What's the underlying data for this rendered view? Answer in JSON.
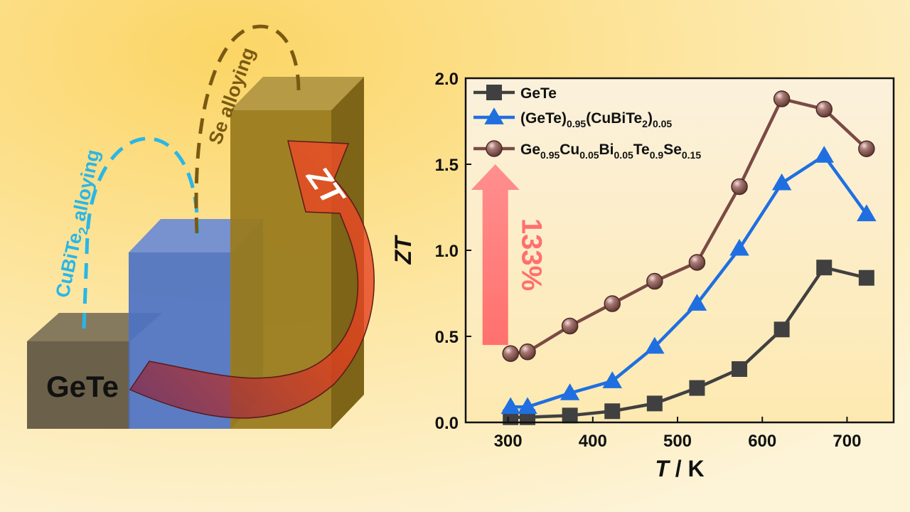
{
  "illustration": {
    "bar_label": "GeTe",
    "step1_label_a": "CuBiTe",
    "step1_label_sub": "2",
    "step1_label_b": " alloying",
    "step2_label": "Se alloying",
    "arrow_label": "ZT",
    "colors": {
      "bar1_front": "#6b6049",
      "bar1_top": "#857a5e",
      "bar2_front": "#4d72c4",
      "bar2_top": "#7891cf",
      "bar2_side": "#3e5ea6",
      "bar3_front": "#9a7b1f",
      "bar3_top": "#b69a46",
      "bar3_side": "#7d6417",
      "arrow_outer": "#e0401e",
      "arrow_inner": "#7a2c52",
      "label1": "#29b6e8",
      "label2": "#7a5a12"
    }
  },
  "chart_data": {
    "type": "line",
    "xlabel_italic": "T",
    "xlabel_rest": " / K",
    "ylabel": "ZT",
    "xlim": [
      250,
      755
    ],
    "ylim": [
      0,
      2.0
    ],
    "xticks": [
      300,
      400,
      500,
      600,
      700
    ],
    "yticks": [
      0.0,
      0.5,
      1.0,
      1.5,
      2.0
    ],
    "ytick_labels": [
      "0.0",
      "0.5",
      "1.0",
      "1.5",
      "2.0"
    ],
    "legend_position": "top-left",
    "annotation": {
      "text": "133%",
      "arrow_from": 0.45,
      "arrow_to": 1.5,
      "x": 285,
      "color": "#ff6f6f"
    },
    "series": [
      {
        "legend": [
          {
            "t": "GeTe"
          }
        ],
        "marker": "square",
        "color": "#404040",
        "x": [
          303,
          323,
          373,
          423,
          473,
          523,
          573,
          623,
          673,
          723
        ],
        "y": [
          0.03,
          0.03,
          0.04,
          0.065,
          0.11,
          0.2,
          0.31,
          0.54,
          0.9,
          0.84
        ]
      },
      {
        "legend": [
          {
            "t": "(GeTe)"
          },
          {
            "t": "0.95",
            "sub": true
          },
          {
            "t": "(CuBiTe"
          },
          {
            "t": "2",
            "sub": true
          },
          {
            "t": ")"
          },
          {
            "t": "0.05",
            "sub": true
          }
        ],
        "marker": "triangle",
        "color": "#1f6fe0",
        "x": [
          303,
          323,
          373,
          423,
          473,
          523,
          573,
          623,
          673,
          723
        ],
        "y": [
          0.09,
          0.09,
          0.17,
          0.24,
          0.44,
          0.69,
          1.01,
          1.39,
          1.55,
          1.21
        ]
      },
      {
        "legend": [
          {
            "t": "Ge"
          },
          {
            "t": "0.95",
            "sub": true
          },
          {
            "t": "Cu"
          },
          {
            "t": "0.05",
            "sub": true
          },
          {
            "t": "Bi"
          },
          {
            "t": "0.05",
            "sub": true
          },
          {
            "t": "Te"
          },
          {
            "t": "0.9",
            "sub": true
          },
          {
            "t": "Se"
          },
          {
            "t": "0.15",
            "sub": true
          }
        ],
        "marker": "sphere",
        "color": "#7b4a45",
        "x": [
          303,
          323,
          373,
          423,
          473,
          523,
          573,
          623,
          673,
          723
        ],
        "y": [
          0.4,
          0.41,
          0.56,
          0.69,
          0.82,
          0.93,
          1.37,
          1.88,
          1.82,
          1.59
        ]
      }
    ]
  }
}
